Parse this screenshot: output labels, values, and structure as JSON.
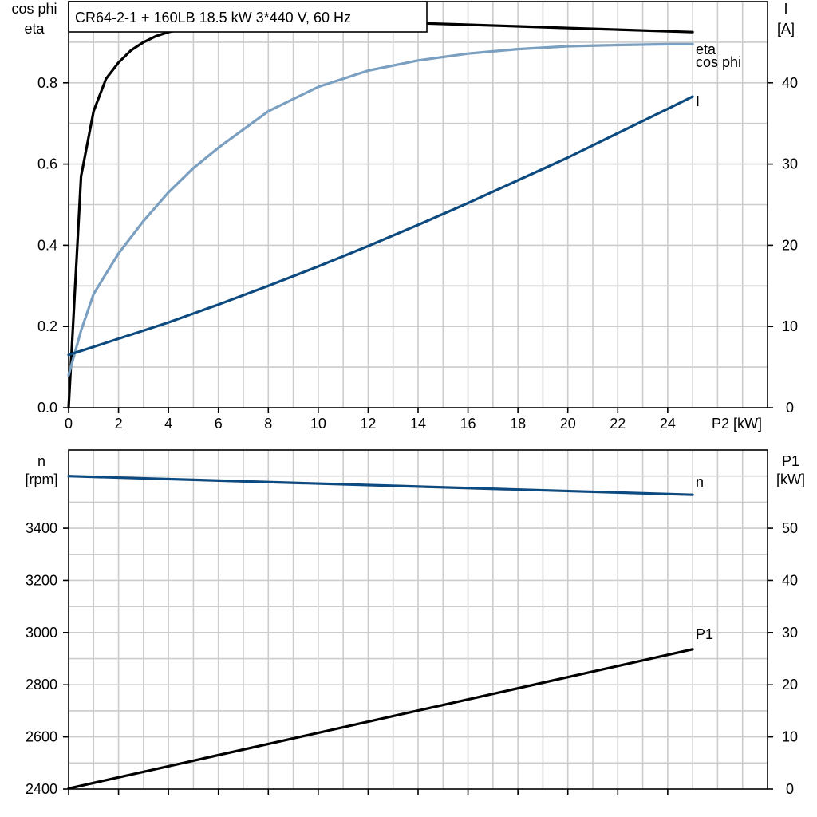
{
  "title": "CR64-2-1 + 160LB   18.5 kW   3*440 V, 60 Hz",
  "colors": {
    "eta": "#000000",
    "cos_phi": "#7a9fc0",
    "I": "#0c4a80",
    "n": "#0c4a80",
    "P1": "#000000"
  },
  "chart_data": [
    {
      "type": "line",
      "xlabel": "P2 [kW]",
      "xlim": [
        0,
        28
      ],
      "x_ticks": [
        0,
        2,
        4,
        6,
        8,
        10,
        12,
        14,
        16,
        18,
        20,
        22,
        24
      ],
      "left_axis": {
        "label_lines": [
          "cos phi",
          "eta"
        ],
        "ylim": [
          0,
          1.0
        ],
        "ticks": [
          0.0,
          0.2,
          0.4,
          0.6,
          0.8
        ],
        "tick_labels": [
          "0.0",
          "0.2",
          "0.4",
          "0.6",
          "0.8"
        ]
      },
      "right_axis": {
        "label_lines": [
          "I",
          "[A]"
        ],
        "ylim": [
          0,
          50
        ],
        "ticks": [
          0,
          10,
          20,
          30,
          40
        ],
        "tick_labels": [
          "0",
          "10",
          "20",
          "30",
          "40"
        ]
      },
      "grid": true,
      "series": [
        {
          "name": "eta",
          "axis": "left",
          "x": [
            0,
            0.5,
            1,
            1.5,
            2,
            2.5,
            3,
            3.5,
            4,
            5,
            6,
            8,
            10,
            12,
            14,
            16,
            18,
            20,
            22,
            24,
            25
          ],
          "y": [
            0.0,
            0.57,
            0.73,
            0.81,
            0.85,
            0.88,
            0.9,
            0.915,
            0.925,
            0.937,
            0.944,
            0.949,
            0.95,
            0.949,
            0.947,
            0.943,
            0.939,
            0.935,
            0.931,
            0.927,
            0.925
          ]
        },
        {
          "name": "cos phi",
          "axis": "left",
          "x": [
            0,
            0.5,
            1,
            1.5,
            2,
            3,
            4,
            5,
            6,
            8,
            10,
            12,
            14,
            16,
            18,
            20,
            22,
            24,
            25
          ],
          "y": [
            0.08,
            0.19,
            0.28,
            0.33,
            0.38,
            0.46,
            0.53,
            0.59,
            0.64,
            0.73,
            0.79,
            0.83,
            0.855,
            0.872,
            0.883,
            0.89,
            0.893,
            0.895,
            0.895
          ]
        },
        {
          "name": "I",
          "axis": "right",
          "x": [
            0,
            2,
            4,
            6,
            8,
            10,
            12,
            14,
            16,
            18,
            20,
            22,
            24,
            25
          ],
          "y": [
            6.5,
            8.5,
            10.5,
            12.7,
            15.0,
            17.4,
            19.9,
            22.5,
            25.2,
            28.0,
            30.8,
            33.8,
            36.8,
            38.3
          ]
        }
      ]
    },
    {
      "type": "line",
      "xlim": [
        0,
        28
      ],
      "x_ticks": [
        0,
        2,
        4,
        6,
        8,
        10,
        12,
        14,
        16,
        18,
        20,
        22,
        24
      ],
      "left_axis": {
        "label_lines": [
          "n",
          "[rpm]"
        ],
        "ylim": [
          2400,
          3700
        ],
        "ticks": [
          2400,
          2600,
          2800,
          3000,
          3200,
          3400
        ],
        "tick_labels": [
          "2400",
          "2600",
          "2800",
          "3000",
          "3200",
          "3400"
        ]
      },
      "right_axis": {
        "label_lines": [
          "P1",
          "[kW]"
        ],
        "ylim": [
          0,
          65
        ],
        "ticks": [
          0,
          10,
          20,
          30,
          40,
          50
        ],
        "tick_labels": [
          "0",
          "10",
          "20",
          "30",
          "40",
          "50"
        ]
      },
      "grid": true,
      "series": [
        {
          "name": "n",
          "axis": "left",
          "x": [
            0,
            25
          ],
          "y": [
            3600,
            3528
          ]
        },
        {
          "name": "P1",
          "axis": "right",
          "x": [
            0,
            25
          ],
          "y": [
            0.1,
            26.8
          ]
        }
      ]
    }
  ]
}
